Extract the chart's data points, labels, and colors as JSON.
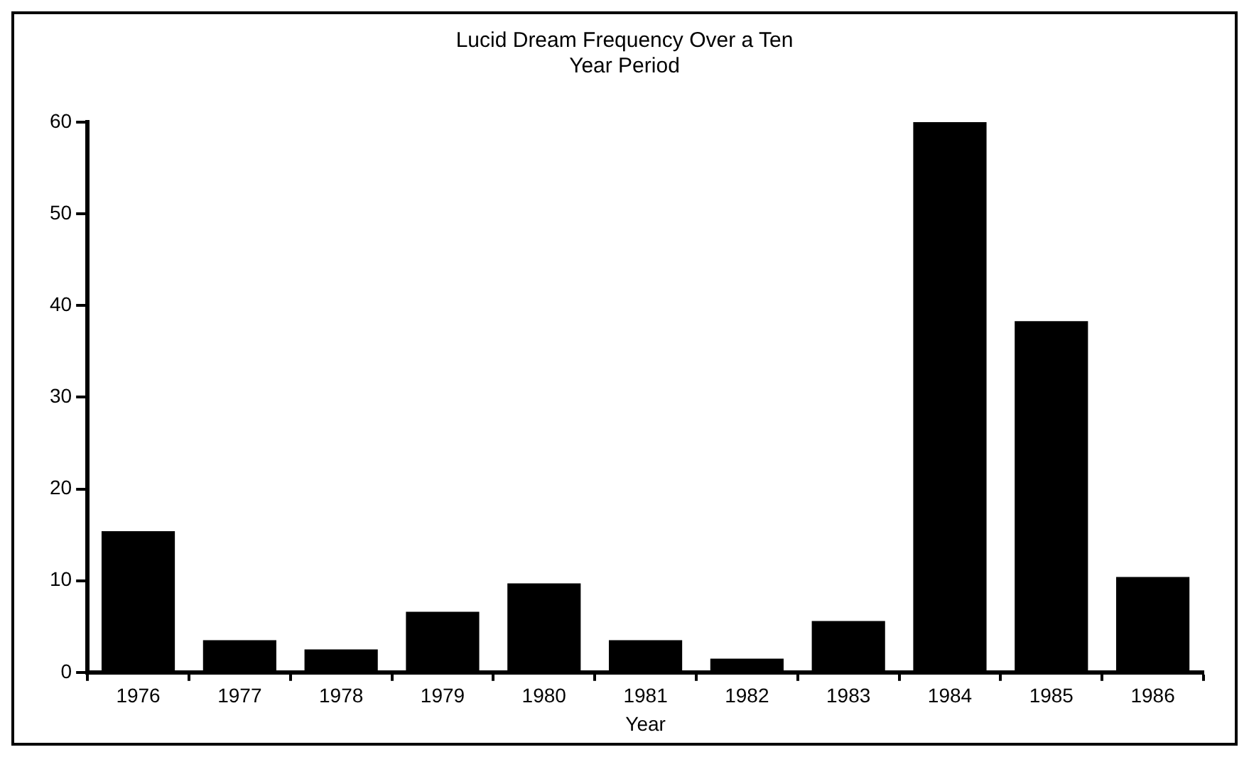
{
  "chart_data": {
    "type": "bar",
    "title": [
      "Lucid Dream Frequency Over a Ten",
      "Year Period"
    ],
    "xlabel": "Year",
    "categories": [
      "1976",
      "1977",
      "1978",
      "1979",
      "1980",
      "1981",
      "1982",
      "1983",
      "1984",
      "1985",
      "1986"
    ],
    "values": [
      15.4,
      3.5,
      2.5,
      6.6,
      9.7,
      3.5,
      1.5,
      5.6,
      60,
      38.3,
      10.4
    ],
    "color": "#000000",
    "ylim": [
      0,
      60
    ],
    "yticks": [
      0,
      10,
      20,
      30,
      40,
      50,
      60
    ],
    "grid": false,
    "legend": false
  }
}
